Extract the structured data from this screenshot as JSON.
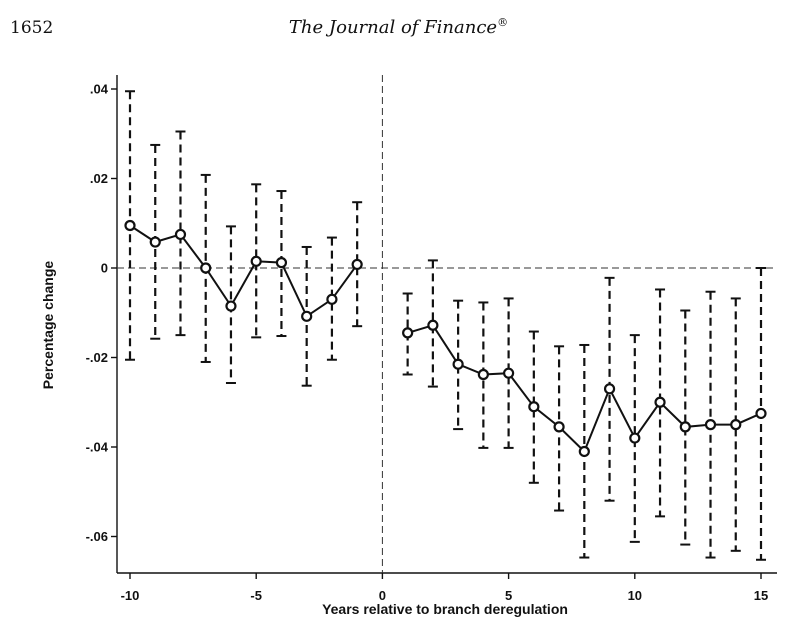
{
  "header": {
    "page_number": "1652",
    "journal_title": "The Journal of Finance",
    "registered_mark": "®"
  },
  "chart_data": {
    "type": "line",
    "title": "",
    "xlabel": "Years relative to branch deregulation",
    "ylabel": "Percentage change",
    "xlim": [
      -10.5,
      15.3
    ],
    "ylim": [
      -0.069,
      0.043
    ],
    "xticks": [
      -10,
      -5,
      0,
      5,
      10,
      15
    ],
    "xtick_labels": [
      "-10",
      "-5",
      "0",
      "5",
      "10",
      "15"
    ],
    "yticks": [
      0.04,
      0.02,
      0,
      -0.02,
      -0.04,
      -0.06
    ],
    "ytick_labels": [
      ".04",
      ".02",
      "0",
      "-.02",
      "-.04",
      "-.06"
    ],
    "reference_lines": {
      "vertical_x": 0,
      "horizontal_y": 0,
      "style": "dashed"
    },
    "series": [
      {
        "segment": "pre",
        "x": [
          -10,
          -9,
          -8,
          -7,
          -6,
          -5,
          -4,
          -3,
          -2,
          -1
        ],
        "y": [
          0.0095,
          0.0058,
          0.0075,
          0.0,
          -0.0085,
          0.0015,
          0.0012,
          -0.0108,
          -0.007,
          0.0008
        ],
        "ci_low": [
          -0.0205,
          -0.0158,
          -0.015,
          -0.021,
          -0.0257,
          -0.0155,
          -0.0152,
          -0.0263,
          -0.0205,
          -0.013
        ],
        "ci_high": [
          0.0395,
          0.0275,
          0.0305,
          0.0208,
          0.0093,
          0.0187,
          0.0172,
          0.0047,
          0.0068,
          0.0147
        ]
      },
      {
        "segment": "post",
        "x": [
          1,
          2,
          3,
          4,
          5,
          6,
          7,
          8,
          9,
          10,
          11,
          12,
          13,
          14,
          15
        ],
        "y": [
          -0.0145,
          -0.0128,
          -0.0215,
          -0.0238,
          -0.0235,
          -0.031,
          -0.0355,
          -0.041,
          -0.027,
          -0.038,
          -0.03,
          -0.0355,
          -0.035,
          -0.035,
          -0.0325
        ],
        "ci_low": [
          -0.0238,
          -0.0265,
          -0.036,
          -0.0402,
          -0.0402,
          -0.048,
          -0.0542,
          -0.0647,
          -0.052,
          -0.0612,
          -0.0555,
          -0.0618,
          -0.0647,
          -0.0632,
          -0.0652
        ],
        "ci_high": [
          -0.0057,
          0.0017,
          -0.0073,
          -0.0077,
          -0.0068,
          -0.0142,
          -0.0175,
          -0.0172,
          -0.0022,
          -0.015,
          -0.0048,
          -0.0095,
          -0.0053,
          -0.0068,
          0.0
        ]
      }
    ]
  }
}
